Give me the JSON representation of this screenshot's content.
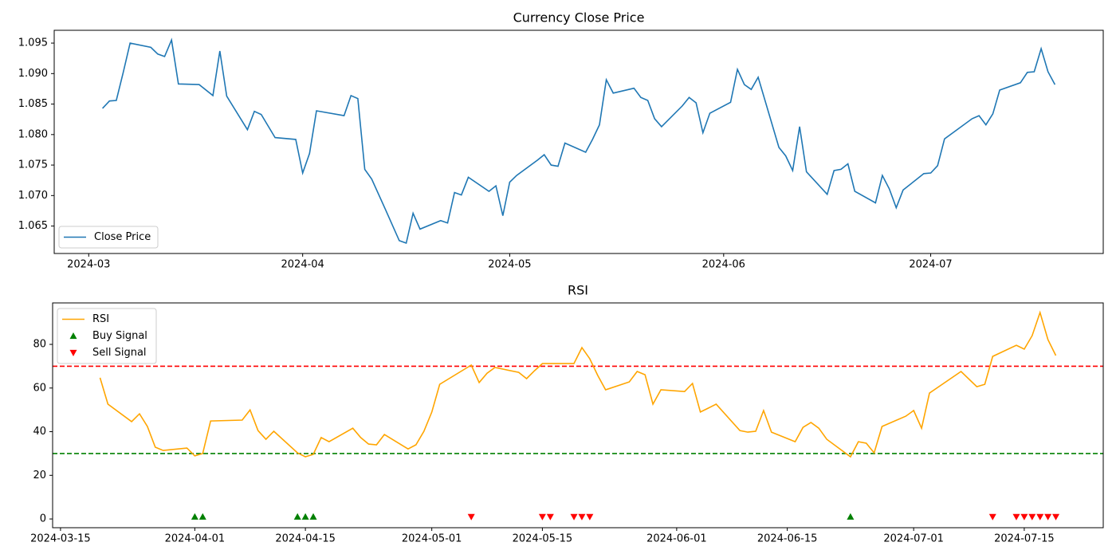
{
  "chart_data": [
    {
      "type": "line",
      "title": "Currency Close Price",
      "x": [
        "2024-03-03",
        "2024-03-04",
        "2024-03-05",
        "2024-03-06",
        "2024-03-07",
        "2024-03-10",
        "2024-03-11",
        "2024-03-12",
        "2024-03-13",
        "2024-03-14",
        "2024-03-17",
        "2024-03-19",
        "2024-03-20",
        "2024-03-21",
        "2024-03-24",
        "2024-03-25",
        "2024-03-26",
        "2024-03-28",
        "2024-03-31",
        "2024-04-01",
        "2024-04-02",
        "2024-04-03",
        "2024-04-07",
        "2024-04-08",
        "2024-04-09",
        "2024-04-10",
        "2024-04-11",
        "2024-04-13",
        "2024-04-15",
        "2024-04-16",
        "2024-04-17",
        "2024-04-18",
        "2024-04-21",
        "2024-04-22",
        "2024-04-23",
        "2024-04-24",
        "2024-04-25",
        "2024-04-28",
        "2024-04-29",
        "2024-04-30",
        "2024-05-01",
        "2024-05-02",
        "2024-05-05",
        "2024-05-06",
        "2024-05-07",
        "2024-05-08",
        "2024-05-09",
        "2024-05-12",
        "2024-05-13",
        "2024-05-14",
        "2024-05-15",
        "2024-05-16",
        "2024-05-19",
        "2024-05-20",
        "2024-05-21",
        "2024-05-22",
        "2024-05-23",
        "2024-05-26",
        "2024-05-27",
        "2024-05-28",
        "2024-05-29",
        "2024-05-30",
        "2024-06-02",
        "2024-06-03",
        "2024-06-04",
        "2024-06-05",
        "2024-06-06",
        "2024-06-09",
        "2024-06-10",
        "2024-06-11",
        "2024-06-12",
        "2024-06-13",
        "2024-06-16",
        "2024-06-17",
        "2024-06-18",
        "2024-06-19",
        "2024-06-20",
        "2024-06-23",
        "2024-06-24",
        "2024-06-25",
        "2024-06-26",
        "2024-06-27",
        "2024-06-30",
        "2024-07-01",
        "2024-07-02",
        "2024-07-03",
        "2024-07-07",
        "2024-07-08",
        "2024-07-09",
        "2024-07-10",
        "2024-07-11",
        "2024-07-14",
        "2024-07-15",
        "2024-07-16",
        "2024-07-17",
        "2024-07-18",
        "2024-07-19"
      ],
      "series": [
        {
          "name": "Close Price",
          "color": "#1f77b4",
          "values": [
            1.0843,
            1.0855,
            1.0856,
            1.0902,
            1.095,
            1.0943,
            1.0932,
            1.0928,
            1.0955,
            1.0883,
            1.0882,
            1.0864,
            1.0937,
            1.0863,
            1.0808,
            1.0838,
            1.0833,
            1.0795,
            1.0792,
            1.0737,
            1.0769,
            1.0839,
            1.0831,
            1.0864,
            1.0859,
            1.0743,
            1.0727,
            1.0677,
            1.0626,
            1.0622,
            1.0671,
            1.0645,
            1.0659,
            1.0655,
            1.0705,
            1.0701,
            1.073,
            1.0707,
            1.0716,
            1.0667,
            1.0722,
            1.0733,
            1.0758,
            1.0767,
            1.075,
            1.0748,
            1.0786,
            1.0771,
            1.0792,
            1.0816,
            1.089,
            1.0868,
            1.0876,
            1.0861,
            1.0856,
            1.0826,
            1.0813,
            1.0847,
            1.0861,
            1.0852,
            1.0803,
            1.0835,
            1.0853,
            1.0907,
            1.0882,
            1.0874,
            1.0894,
            1.0779,
            1.0765,
            1.0741,
            1.0813,
            1.0739,
            1.0702,
            1.0741,
            1.0743,
            1.0752,
            1.0707,
            1.0688,
            1.0733,
            1.0711,
            1.068,
            1.0709,
            1.0736,
            1.0737,
            1.0749,
            1.0793,
            1.0826,
            1.0831,
            1.0816,
            1.0834,
            1.0873,
            1.0885,
            1.0902,
            1.0903,
            1.0941,
            1.0903,
            1.0882
          ]
        }
      ],
      "xlim": [
        "2024-02-25",
        "2024-07-26"
      ],
      "xticks": [
        {
          "value": "2024-03-01",
          "label": "2024-03"
        },
        {
          "value": "2024-04-01",
          "label": "2024-04"
        },
        {
          "value": "2024-05-01",
          "label": "2024-05"
        },
        {
          "value": "2024-06-01",
          "label": "2024-06"
        },
        {
          "value": "2024-07-01",
          "label": "2024-07"
        }
      ],
      "ylim": [
        1.0605,
        1.0971
      ],
      "yticks": [
        1.065,
        {
          "value": 1.07,
          "label": "1.070"
        },
        1.075,
        {
          "value": 1.08,
          "label": "1.080"
        },
        1.085,
        {
          "value": 1.09,
          "label": "1.090"
        },
        1.095
      ],
      "legend": "lower left"
    },
    {
      "type": "line",
      "title": "RSI",
      "series": [
        {
          "name": "RSI",
          "type": "line",
          "color": "orange",
          "x": [
            "2024-03-20",
            "2024-03-21",
            "2024-03-24",
            "2024-03-25",
            "2024-03-26",
            "2024-03-27",
            "2024-03-28",
            "2024-03-31",
            "2024-04-01",
            "2024-04-02",
            "2024-04-03",
            "2024-04-07",
            "2024-04-08",
            "2024-04-09",
            "2024-04-10",
            "2024-04-11",
            "2024-04-14",
            "2024-04-15",
            "2024-04-16",
            "2024-04-17",
            "2024-04-18",
            "2024-04-21",
            "2024-04-22",
            "2024-04-23",
            "2024-04-24",
            "2024-04-25",
            "2024-04-28",
            "2024-04-29",
            "2024-04-30",
            "2024-05-01",
            "2024-05-02",
            "2024-05-06",
            "2024-05-07",
            "2024-05-08",
            "2024-05-09",
            "2024-05-12",
            "2024-05-13",
            "2024-05-14",
            "2024-05-15",
            "2024-05-19",
            "2024-05-20",
            "2024-05-21",
            "2024-05-22",
            "2024-05-23",
            "2024-05-26",
            "2024-05-27",
            "2024-05-28",
            "2024-05-29",
            "2024-05-30",
            "2024-06-02",
            "2024-06-03",
            "2024-06-04",
            "2024-06-05",
            "2024-06-06",
            "2024-06-09",
            "2024-06-10",
            "2024-06-11",
            "2024-06-12",
            "2024-06-13",
            "2024-06-16",
            "2024-06-17",
            "2024-06-18",
            "2024-06-19",
            "2024-06-20",
            "2024-06-23",
            "2024-06-24",
            "2024-06-25",
            "2024-06-26",
            "2024-06-27",
            "2024-06-30",
            "2024-07-01",
            "2024-07-02",
            "2024-07-03",
            "2024-07-07",
            "2024-07-09",
            "2024-07-10",
            "2024-07-11",
            "2024-07-14",
            "2024-07-15",
            "2024-07-16",
            "2024-07-17",
            "2024-07-18",
            "2024-07-19"
          ],
          "values": [
            64.7,
            52.6,
            44.6,
            48.2,
            42.4,
            32.9,
            31.4,
            32.5,
            28.9,
            30.0,
            44.9,
            45.3,
            50.0,
            40.5,
            36.5,
            40.2,
            30.3,
            28.5,
            29.6,
            37.3,
            35.4,
            41.6,
            37.3,
            34.3,
            34.0,
            38.7,
            32.1,
            34.0,
            40.2,
            49.0,
            61.7,
            70.5,
            62.5,
            66.8,
            69.4,
            67.2,
            64.3,
            67.9,
            71.2,
            71.2,
            78.5,
            73.4,
            65.8,
            59.2,
            62.8,
            67.6,
            66.1,
            52.6,
            59.2,
            58.4,
            62.1,
            49.0,
            50.8,
            52.6,
            40.5,
            39.8,
            40.2,
            49.7,
            39.8,
            35.4,
            42.0,
            44.2,
            41.6,
            36.5,
            28.5,
            35.4,
            34.7,
            30.3,
            42.4,
            47.1,
            49.7,
            41.6,
            57.7,
            67.6,
            60.6,
            61.7,
            74.5,
            79.6,
            77.8,
            84.0,
            94.6,
            82.2,
            74.9
          ]
        },
        {
          "name": "Buy Signal",
          "type": "scatter",
          "marker": "^",
          "color": "green",
          "x": [
            "2024-04-01",
            "2024-04-02",
            "2024-04-14",
            "2024-04-15",
            "2024-04-16",
            "2024-06-23"
          ],
          "values": [
            1,
            1,
            1,
            1,
            1,
            1
          ]
        },
        {
          "name": "Sell Signal",
          "type": "scatter",
          "marker": "v",
          "color": "red",
          "x": [
            "2024-05-06",
            "2024-05-15",
            "2024-05-16",
            "2024-05-19",
            "2024-05-20",
            "2024-05-21",
            "2024-07-11",
            "2024-07-14",
            "2024-07-15",
            "2024-07-16",
            "2024-07-17",
            "2024-07-18",
            "2024-07-19"
          ],
          "values": [
            1,
            1,
            1,
            1,
            1,
            1,
            1,
            1,
            1,
            1,
            1,
            1,
            1
          ]
        }
      ],
      "hlines": [
        {
          "value": 70,
          "color": "red"
        },
        {
          "value": 30,
          "color": "green"
        }
      ],
      "xlim": [
        "2024-03-14",
        "2024-07-25"
      ],
      "xticks": [
        "2024-03-15",
        "2024-04-01",
        "2024-04-15",
        "2024-05-01",
        "2024-05-15",
        "2024-06-01",
        "2024-06-15",
        "2024-07-01",
        "2024-07-15"
      ],
      "ylim": [
        -4,
        99
      ],
      "yticks": [
        0,
        20,
        40,
        60,
        80
      ],
      "legend": "upper left"
    }
  ]
}
